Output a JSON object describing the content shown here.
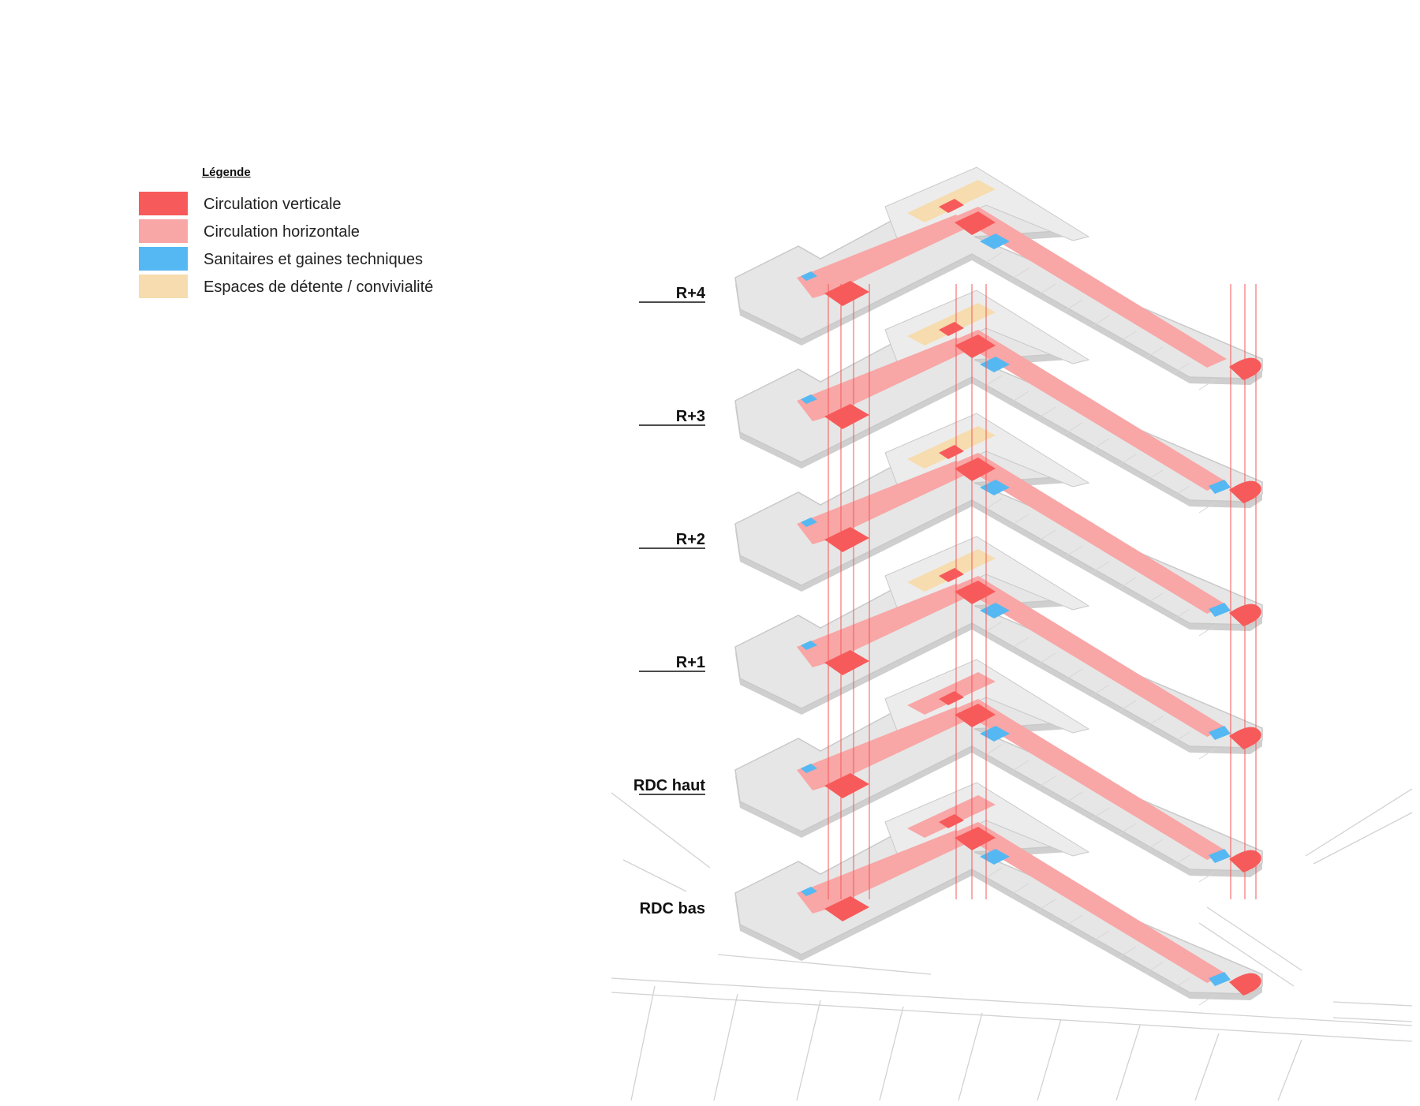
{
  "legend": {
    "title": "Légende",
    "items": [
      {
        "label": "Circulation verticale",
        "color": "#f75a5a"
      },
      {
        "label": "Circulation horizontale",
        "color": "#f8a6a6"
      },
      {
        "label": "Sanitaires et gaines techniques",
        "color": "#56b8f2"
      },
      {
        "label": "Espaces de détente / convivialité",
        "color": "#f6dcae"
      }
    ]
  },
  "floors": [
    {
      "label": "R+4"
    },
    {
      "label": "R+3"
    },
    {
      "label": "R+2"
    },
    {
      "label": "R+1"
    },
    {
      "label": "RDC haut"
    },
    {
      "label": "RDC bas"
    }
  ],
  "colors": {
    "slab": "#e6e6e6",
    "slab_edge": "#c9c9c9",
    "ground_lines": "#d2d2d2"
  }
}
